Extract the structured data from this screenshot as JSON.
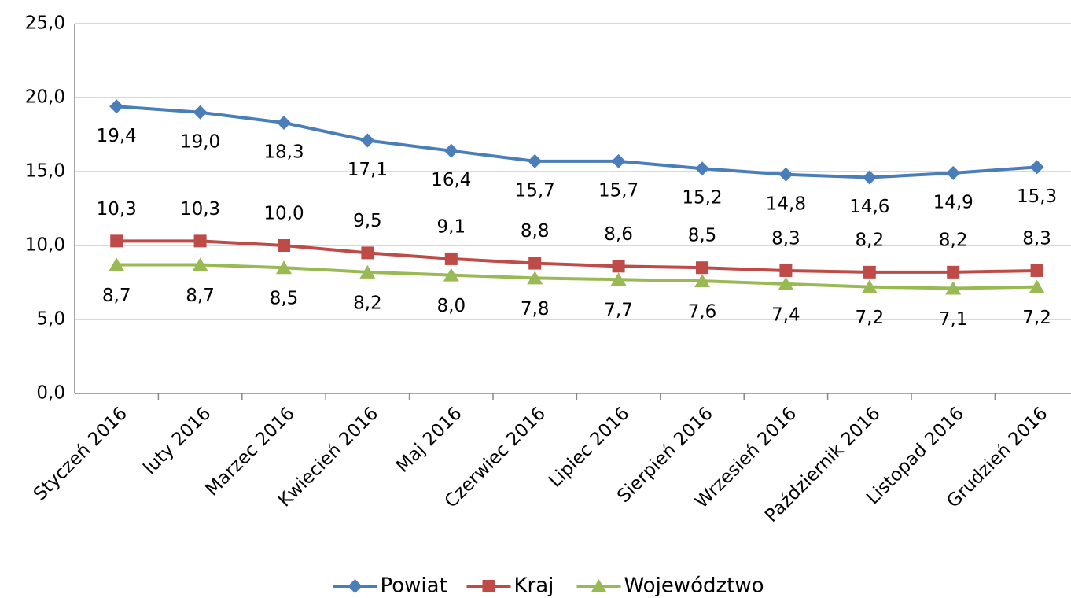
{
  "chart_data": {
    "type": "line",
    "categories": [
      "Styczeń 2016",
      "luty 2016",
      "Marzec 2016",
      "Kwiecień 2016",
      "Maj 2016",
      "Czerwiec 2016",
      "Lipiec 2016",
      "Sierpień 2016",
      "Wrzesień 2016",
      "Październik 2016",
      "Listopad 2016",
      "Grudzień 2016"
    ],
    "series": [
      {
        "name": "Powiat",
        "color": "#4a7ebb",
        "marker": "diamond",
        "values": [
          19.4,
          19.0,
          18.3,
          17.1,
          16.4,
          15.7,
          15.7,
          15.2,
          14.8,
          14.6,
          14.9,
          15.3
        ],
        "value_labels": [
          "19,4",
          "19,0",
          "18,3",
          "17,1",
          "16,4",
          "15,7",
          "15,7",
          "15,2",
          "14,8",
          "14,6",
          "14,9",
          "15,3"
        ]
      },
      {
        "name": "Kraj",
        "color": "#be4b48",
        "marker": "square",
        "values": [
          10.3,
          10.3,
          10.0,
          9.5,
          9.1,
          8.8,
          8.6,
          8.5,
          8.3,
          8.2,
          8.2,
          8.3
        ],
        "value_labels": [
          "10,3",
          "10,3",
          "10,0",
          "9,5",
          "9,1",
          "8,8",
          "8,6",
          "8,5",
          "8,3",
          "8,2",
          "8,2",
          "8,3"
        ]
      },
      {
        "name": "Województwo",
        "color": "#98b954",
        "marker": "triangle",
        "values": [
          8.7,
          8.7,
          8.5,
          8.2,
          8.0,
          7.8,
          7.7,
          7.6,
          7.4,
          7.2,
          7.1,
          7.2
        ],
        "value_labels": [
          "8,7",
          "8,7",
          "8,5",
          "8,2",
          "8,0",
          "7,8",
          "7,7",
          "7,6",
          "7,4",
          "7,2",
          "7,1",
          "7,2"
        ]
      }
    ],
    "ylim": [
      0,
      25
    ],
    "yticks": [
      {
        "value": 0,
        "label": "0,0"
      },
      {
        "value": 5,
        "label": "5,0"
      },
      {
        "value": 10,
        "label": "10,0"
      },
      {
        "value": 15,
        "label": "15,0"
      },
      {
        "value": 20,
        "label": "20,0"
      },
      {
        "value": 25,
        "label": "25,0"
      }
    ],
    "grid": true,
    "legend": "bottom"
  }
}
